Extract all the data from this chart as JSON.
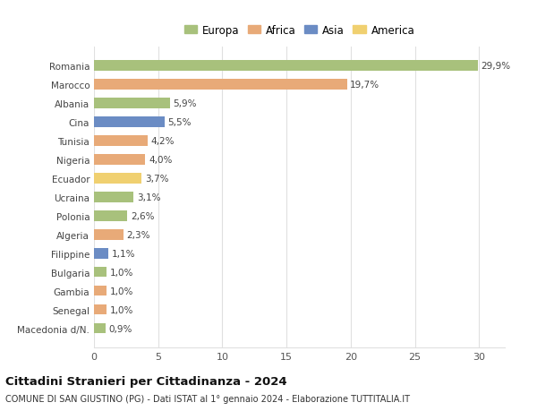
{
  "countries": [
    "Romania",
    "Marocco",
    "Albania",
    "Cina",
    "Tunisia",
    "Nigeria",
    "Ecuador",
    "Ucraina",
    "Polonia",
    "Algeria",
    "Filippine",
    "Bulgaria",
    "Gambia",
    "Senegal",
    "Macedonia d/N."
  ],
  "values": [
    29.9,
    19.7,
    5.9,
    5.5,
    4.2,
    4.0,
    3.7,
    3.1,
    2.6,
    2.3,
    1.1,
    1.0,
    1.0,
    1.0,
    0.9
  ],
  "labels": [
    "29,9%",
    "19,7%",
    "5,9%",
    "5,5%",
    "4,2%",
    "4,0%",
    "3,7%",
    "3,1%",
    "2,6%",
    "2,3%",
    "1,1%",
    "1,0%",
    "1,0%",
    "1,0%",
    "0,9%"
  ],
  "colors": [
    "#a8c17c",
    "#e8aa78",
    "#a8c17c",
    "#6b8cc4",
    "#e8aa78",
    "#e8aa78",
    "#f0d070",
    "#a8c17c",
    "#a8c17c",
    "#e8aa78",
    "#6b8cc4",
    "#a8c17c",
    "#e8aa78",
    "#e8aa78",
    "#a8c17c"
  ],
  "legend_labels": [
    "Europa",
    "Africa",
    "Asia",
    "America"
  ],
  "legend_colors": [
    "#a8c17c",
    "#e8aa78",
    "#6b8cc4",
    "#f0d070"
  ],
  "title": "Cittadini Stranieri per Cittadinanza - 2024",
  "subtitle": "COMUNE DI SAN GIUSTINO (PG) - Dati ISTAT al 1° gennaio 2024 - Elaborazione TUTTITALIA.IT",
  "xlim": [
    0,
    32
  ],
  "xticks": [
    0,
    5,
    10,
    15,
    20,
    25,
    30
  ],
  "background_color": "#ffffff",
  "grid_color": "#e0e0e0",
  "bar_height": 0.55,
  "label_fontsize": 7.5,
  "ytick_fontsize": 7.5,
  "xtick_fontsize": 8.0,
  "legend_fontsize": 8.5,
  "title_fontsize": 9.5,
  "subtitle_fontsize": 7.0
}
